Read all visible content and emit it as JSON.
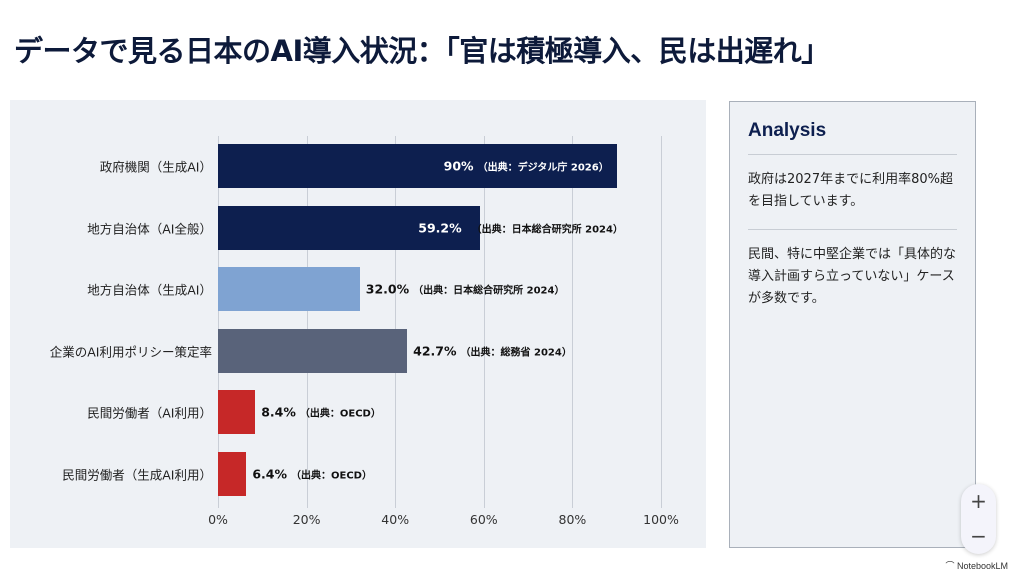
{
  "title": "データで見る日本のAI導入状況：「官は積極導入、民は出遅れ」",
  "chart_data": {
    "type": "bar",
    "orientation": "horizontal",
    "categories": [
      "政府機関（生成AI）",
      "地方自治体（AI全般）",
      "地方自治体（生成AI）",
      "企業のAI利用ポリシー策定率",
      "民間労働者（AI利用）",
      "民間労働者（生成AI利用）"
    ],
    "values": [
      90,
      59.2,
      32.0,
      42.7,
      8.4,
      6.4
    ],
    "value_labels": [
      "90%",
      "59.2%",
      "32.0%",
      "42.7%",
      "8.4%",
      "6.4%"
    ],
    "sources": [
      "（出典：デジタル庁 2026）",
      "（出典：日本総合研究所 2024）",
      "（出典：日本総合研究所 2024）",
      "（出典：総務省 2024）",
      "（出典：OECD）",
      "（出典：OECD）"
    ],
    "colors": [
      "#0d1f4f",
      "#0d1f4f",
      "#7fa3d2",
      "#59637a",
      "#c62828",
      "#c62828"
    ],
    "xlim": [
      0,
      100
    ],
    "xticks": [
      "0%",
      "20%",
      "40%",
      "60%",
      "80%",
      "100%"
    ],
    "grid": true
  },
  "analysis": {
    "heading": "Analysis",
    "notes": [
      "政府は2027年までに利用率80%超を目指しています。",
      "民間、特に中堅企業では「具体的な導入計画すら立っていない」ケースが多数です。"
    ]
  },
  "zoom": {
    "in": "+",
    "out": "−"
  },
  "brand": "NotebookLM"
}
